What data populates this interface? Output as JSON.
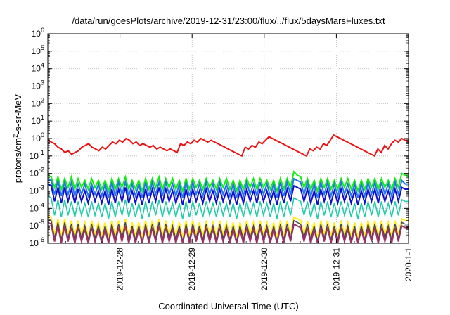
{
  "chart_data": {
    "type": "line",
    "title": "/data/run/goesPlots/archive/2019-12-31/23:00/flux/../flux/5daysMarsFluxes.txt",
    "xlabel": "Coordinated Universal Time (UTC)",
    "ylabel": {
      "base": "protons/cm",
      "sup": "2",
      "rest": "-s-sr-MeV"
    },
    "yscale": "log",
    "ylim": [
      1e-06,
      1000000.0
    ],
    "ytick_exponents": [
      -6,
      -5,
      -4,
      -3,
      -2,
      -1,
      0,
      1,
      2,
      3,
      4,
      5,
      6
    ],
    "ytick_base": "10",
    "xlim": [
      "2019-12-27T00:00",
      "2020-01-01T00:00"
    ],
    "xticks": [
      "2019-12-28",
      "2019-12-29",
      "2019-12-30",
      "2019-12-31",
      "2020-1-1"
    ],
    "grid": true,
    "legend": "none",
    "series": [
      {
        "color": "#ee1111",
        "width": 2.0,
        "log10": [
          -0.1,
          -0.2,
          -0.3,
          -0.5,
          -0.6,
          -0.8,
          -0.7,
          -0.9,
          -0.8,
          -0.7,
          -0.5,
          -0.4,
          -0.3,
          -0.5,
          -0.6,
          -0.7,
          -0.5,
          -0.6,
          -0.4,
          -0.2,
          -0.3,
          -0.1,
          -0.2,
          0.0,
          -0.1,
          -0.3,
          -0.2,
          -0.4,
          -0.3,
          -0.4,
          -0.5,
          -0.4,
          -0.6,
          -0.5,
          -0.6,
          -0.7,
          -0.6,
          -0.7,
          -0.8,
          -0.3,
          -0.4,
          -0.2,
          -0.3,
          -0.1,
          -0.2,
          0.0,
          -0.1,
          -0.2,
          -0.1,
          -0.2,
          -0.3,
          -0.4,
          -0.5,
          -0.6,
          -0.7,
          -0.8,
          -0.9,
          -1.0,
          -0.5,
          -0.6,
          -0.4,
          -0.5,
          -0.2,
          -0.3,
          -0.1,
          0.1,
          0.0,
          -0.1,
          -0.2,
          -0.3,
          -0.4,
          -0.5,
          -0.6,
          -0.7,
          -0.8,
          -0.9,
          -1.0,
          -0.6,
          -0.7,
          -0.5,
          -0.6,
          -0.3,
          -0.4,
          -0.1,
          0.2,
          0.1,
          0.0,
          -0.1,
          -0.2,
          -0.3,
          -0.4,
          -0.5,
          -0.6,
          -0.7,
          -0.8,
          -0.9,
          -1.0,
          -0.6,
          -0.8,
          -0.4,
          -0.6,
          -0.3,
          -0.1,
          -0.2,
          0.0,
          -0.1,
          -0.2
        ]
      },
      {
        "color": "#11ee11",
        "width": 2.0,
        "log10": [
          -2.1,
          -2.2,
          -2.8,
          -2.2,
          -2.9,
          -2.3,
          -2.8,
          -2.2,
          -2.9,
          -2.3,
          -2.8,
          -2.4,
          -2.9,
          -2.3,
          -2.8,
          -2.4,
          -2.9,
          -2.4,
          -3.0,
          -2.3,
          -2.9,
          -2.3,
          -2.8,
          -2.2,
          -2.9,
          -2.4,
          -2.9,
          -2.4,
          -3.0,
          -2.3,
          -2.9,
          -2.3,
          -2.8,
          -2.2,
          -2.9,
          -2.3,
          -2.8,
          -2.3,
          -2.9,
          -2.4,
          -3.0,
          -2.3,
          -2.9,
          -2.3,
          -2.8,
          -2.4,
          -2.9,
          -2.3,
          -2.8,
          -2.4,
          -2.9,
          -2.3,
          -2.8,
          -2.3,
          -2.9,
          -2.4,
          -3.0,
          -2.4,
          -2.9,
          -2.3,
          -2.8,
          -2.3,
          -2.9,
          -2.3,
          -2.8,
          -2.4,
          -2.9,
          -2.4,
          -3.0,
          -2.3,
          -2.9,
          -2.3,
          -2.8,
          -1.9,
          -2.1,
          -2.2,
          -2.8,
          -2.3,
          -2.9,
          -2.4,
          -3.0,
          -2.3,
          -2.8,
          -2.3,
          -2.9,
          -2.4,
          -2.9,
          -2.3,
          -2.8,
          -2.3,
          -2.9,
          -2.4,
          -3.0,
          -2.4,
          -2.9,
          -2.3,
          -2.8,
          -2.3,
          -2.9,
          -2.3,
          -2.8,
          -2.4,
          -2.9,
          -2.3,
          -2.8,
          -2.0,
          -2.1,
          -2.2
        ]
      },
      {
        "color": "#2277ee",
        "width": 2.0,
        "log10": [
          -2.3,
          -2.4,
          -3.2,
          -2.4,
          -3.3,
          -2.5,
          -3.2,
          -2.5,
          -3.3,
          -2.6,
          -3.2,
          -2.6,
          -3.3,
          -2.6,
          -3.2,
          -2.6,
          -3.3,
          -2.6,
          -3.4,
          -2.5,
          -3.3,
          -2.5,
          -3.2,
          -2.5,
          -3.3,
          -2.6,
          -3.3,
          -2.6,
          -3.4,
          -2.5,
          -3.3,
          -2.5,
          -3.2,
          -2.5,
          -3.3,
          -2.5,
          -3.2,
          -2.6,
          -3.3,
          -2.6,
          -3.4,
          -2.5,
          -3.3,
          -2.5,
          -3.2,
          -2.6,
          -3.3,
          -2.5,
          -3.2,
          -2.6,
          -3.3,
          -2.5,
          -3.2,
          -2.6,
          -3.3,
          -2.6,
          -3.4,
          -2.6,
          -3.3,
          -2.5,
          -3.2,
          -2.6,
          -3.3,
          -2.5,
          -3.2,
          -2.6,
          -3.3,
          -2.6,
          -3.4,
          -2.5,
          -3.3,
          -2.5,
          -3.2,
          -2.3,
          -2.4,
          -2.5,
          -3.2,
          -2.5,
          -3.3,
          -2.6,
          -3.4,
          -2.5,
          -3.2,
          -2.5,
          -3.3,
          -2.6,
          -3.3,
          -2.5,
          -3.2,
          -2.6,
          -3.3,
          -2.6,
          -3.4,
          -2.6,
          -3.3,
          -2.5,
          -3.2,
          -2.5,
          -3.3,
          -2.5,
          -3.2,
          -2.6,
          -3.3,
          -2.5,
          -3.2,
          -2.4,
          -2.6,
          -2.6
        ]
      },
      {
        "color": "#1111cc",
        "width": 2.0,
        "log10": [
          -2.6,
          -2.7,
          -3.6,
          -2.8,
          -3.7,
          -2.8,
          -3.6,
          -2.9,
          -3.7,
          -2.9,
          -3.6,
          -3.0,
          -3.7,
          -2.9,
          -3.6,
          -3.0,
          -3.7,
          -3.0,
          -3.8,
          -2.9,
          -3.7,
          -2.9,
          -3.6,
          -2.8,
          -3.7,
          -3.0,
          -3.7,
          -3.0,
          -3.8,
          -2.9,
          -3.7,
          -2.9,
          -3.6,
          -2.8,
          -3.7,
          -2.9,
          -3.6,
          -3.0,
          -3.7,
          -3.0,
          -3.8,
          -2.9,
          -3.7,
          -2.9,
          -3.6,
          -3.0,
          -3.7,
          -2.9,
          -3.6,
          -3.0,
          -3.7,
          -2.9,
          -3.6,
          -3.0,
          -3.7,
          -3.0,
          -3.8,
          -3.0,
          -3.7,
          -2.9,
          -3.6,
          -3.0,
          -3.7,
          -2.9,
          -3.6,
          -3.0,
          -3.7,
          -3.0,
          -3.8,
          -2.9,
          -3.7,
          -2.9,
          -3.6,
          -2.7,
          -2.8,
          -2.9,
          -3.6,
          -2.9,
          -3.7,
          -3.0,
          -3.8,
          -2.9,
          -3.6,
          -2.9,
          -3.7,
          -3.0,
          -3.7,
          -2.9,
          -3.6,
          -3.0,
          -3.7,
          -3.0,
          -3.8,
          -3.0,
          -3.7,
          -2.9,
          -3.6,
          -2.9,
          -3.7,
          -2.9,
          -3.6,
          -3.0,
          -3.7,
          -2.9,
          -3.6,
          -2.8,
          -2.9,
          -2.9
        ]
      },
      {
        "color": "#22ccaa",
        "width": 1.6,
        "log10": [
          -3.3,
          -3.4,
          -4.4,
          -3.5,
          -4.5,
          -3.5,
          -4.4,
          -3.6,
          -4.5,
          -3.6,
          -4.4,
          -3.7,
          -4.5,
          -3.6,
          -4.4,
          -3.7,
          -4.5,
          -3.7,
          -4.6,
          -3.6,
          -4.5,
          -3.6,
          -4.4,
          -3.5,
          -4.5,
          -3.7,
          -4.5,
          -3.7,
          -4.6,
          -3.6,
          -4.5,
          -3.6,
          -4.4,
          -3.5,
          -4.5,
          -3.6,
          -4.4,
          -3.7,
          -4.5,
          -3.7,
          -4.6,
          -3.6,
          -4.5,
          -3.6,
          -4.4,
          -3.7,
          -4.5,
          -3.6,
          -4.4,
          -3.7,
          -4.5,
          -3.6,
          -4.4,
          -3.7,
          -4.5,
          -3.7,
          -4.6,
          -3.7,
          -4.5,
          -3.6,
          -4.4,
          -3.7,
          -4.5,
          -3.6,
          -4.4,
          -3.7,
          -4.5,
          -3.7,
          -4.6,
          -3.6,
          -4.5,
          -3.6,
          -4.4,
          -3.4,
          -3.5,
          -3.6,
          -4.4,
          -3.6,
          -4.5,
          -3.7,
          -4.6,
          -3.6,
          -4.4,
          -3.6,
          -4.5,
          -3.7,
          -4.5,
          -3.6,
          -4.4,
          -3.7,
          -4.5,
          -3.7,
          -4.6,
          -3.7,
          -4.5,
          -3.6,
          -4.4,
          -3.6,
          -4.5,
          -3.6,
          -4.4,
          -3.7,
          -4.5,
          -3.6,
          -4.4,
          -3.5,
          -3.6,
          -3.6
        ]
      },
      {
        "color": "#ffee22",
        "width": 2.0,
        "log10": [
          -4.4,
          -4.5,
          -5.5,
          -4.6,
          -5.6,
          -4.6,
          -5.5,
          -4.7,
          -5.6,
          -4.7,
          -5.5,
          -4.8,
          -5.6,
          -4.7,
          -5.5,
          -4.8,
          -5.6,
          -4.8,
          -5.7,
          -4.7,
          -5.6,
          -4.7,
          -5.5,
          -4.6,
          -5.6,
          -4.8,
          -5.6,
          -4.8,
          -5.7,
          -4.7,
          -5.6,
          -4.7,
          -5.5,
          -4.6,
          -5.6,
          -4.7,
          -5.5,
          -4.8,
          -5.6,
          -4.8,
          -5.7,
          -4.7,
          -5.6,
          -4.7,
          -5.5,
          -4.8,
          -5.6,
          -4.7,
          -5.5,
          -4.8,
          -5.6,
          -4.7,
          -5.5,
          -4.8,
          -5.6,
          -4.8,
          -5.7,
          -4.8,
          -5.6,
          -4.7,
          -5.5,
          -4.8,
          -5.6,
          -4.7,
          -5.5,
          -4.8,
          -5.6,
          -4.8,
          -5.7,
          -4.7,
          -5.6,
          -4.7,
          -5.5,
          -4.5,
          -4.6,
          -4.7,
          -5.5,
          -4.7,
          -5.6,
          -4.8,
          -5.7,
          -4.7,
          -5.5,
          -4.7,
          -5.6,
          -4.8,
          -5.6,
          -4.7,
          -5.5,
          -4.8,
          -5.6,
          -4.8,
          -5.7,
          -4.8,
          -5.6,
          -4.7,
          -5.5,
          -4.7,
          -5.6,
          -4.7,
          -5.5,
          -4.8,
          -5.6,
          -4.7,
          -5.5,
          -4.6,
          -4.7,
          -4.7
        ]
      },
      {
        "color": "#444455",
        "width": 1.4,
        "log10": [
          -4.6,
          -4.7,
          -5.7,
          -4.8,
          -5.8,
          -4.8,
          -5.7,
          -4.9,
          -5.8,
          -4.9,
          -5.7,
          -5.0,
          -5.8,
          -4.9,
          -5.7,
          -5.0,
          -5.8,
          -5.0,
          -5.9,
          -4.9,
          -5.8,
          -4.9,
          -5.7,
          -4.8,
          -5.8,
          -5.0,
          -5.8,
          -5.0,
          -5.9,
          -4.9,
          -5.8,
          -4.9,
          -5.7,
          -4.8,
          -5.8,
          -4.9,
          -5.7,
          -5.0,
          -5.8,
          -5.0,
          -5.9,
          -4.9,
          -5.8,
          -4.9,
          -5.7,
          -5.0,
          -5.8,
          -4.9,
          -5.7,
          -5.0,
          -5.8,
          -4.9,
          -5.7,
          -5.0,
          -5.8,
          -5.0,
          -5.9,
          -5.0,
          -5.8,
          -4.9,
          -5.7,
          -5.0,
          -5.8,
          -4.9,
          -5.7,
          -5.0,
          -5.8,
          -5.0,
          -5.9,
          -4.9,
          -5.8,
          -4.9,
          -5.7,
          -4.7,
          -4.8,
          -4.9,
          -5.7,
          -4.9,
          -5.8,
          -5.0,
          -5.9,
          -4.9,
          -5.7,
          -4.9,
          -5.8,
          -5.0,
          -5.8,
          -4.9,
          -5.7,
          -5.0,
          -5.8,
          -5.0,
          -5.9,
          -5.0,
          -5.8,
          -4.9,
          -5.7,
          -4.9,
          -5.8,
          -4.9,
          -5.7,
          -5.0,
          -5.8,
          -4.9,
          -5.7,
          -4.8,
          -4.9,
          -4.9
        ]
      },
      {
        "color": "#993366",
        "width": 2.0,
        "log10": [
          -4.8,
          -4.9,
          -5.9,
          -5.0,
          -6.0,
          -5.0,
          -5.9,
          -5.1,
          -6.0,
          -5.1,
          -5.9,
          -5.2,
          -6.0,
          -5.1,
          -5.9,
          -5.2,
          -6.0,
          -5.2,
          -6.0,
          -5.1,
          -6.0,
          -5.1,
          -5.9,
          -5.0,
          -6.0,
          -5.2,
          -6.0,
          -5.2,
          -6.0,
          -5.1,
          -6.0,
          -5.1,
          -5.9,
          -5.0,
          -6.0,
          -5.1,
          -5.9,
          -5.2,
          -6.0,
          -5.2,
          -6.0,
          -5.1,
          -6.0,
          -5.1,
          -5.9,
          -5.2,
          -6.0,
          -5.1,
          -5.9,
          -5.2,
          -6.0,
          -5.1,
          -5.9,
          -5.2,
          -6.0,
          -5.2,
          -6.0,
          -5.2,
          -6.0,
          -5.1,
          -5.9,
          -5.2,
          -6.0,
          -5.1,
          -5.9,
          -5.2,
          -6.0,
          -5.2,
          -6.0,
          -5.1,
          -6.0,
          -5.1,
          -5.9,
          -4.9,
          -5.0,
          -5.1,
          -5.9,
          -5.1,
          -6.0,
          -5.2,
          -6.0,
          -5.1,
          -5.9,
          -5.1,
          -6.0,
          -5.2,
          -6.0,
          -5.1,
          -5.9,
          -5.2,
          -6.0,
          -5.2,
          -6.0,
          -5.2,
          -6.0,
          -5.1,
          -5.9,
          -5.1,
          -6.0,
          -5.1,
          -5.9,
          -5.2,
          -6.0,
          -5.1,
          -5.9,
          -5.0,
          -5.1,
          -5.1
        ]
      }
    ]
  }
}
